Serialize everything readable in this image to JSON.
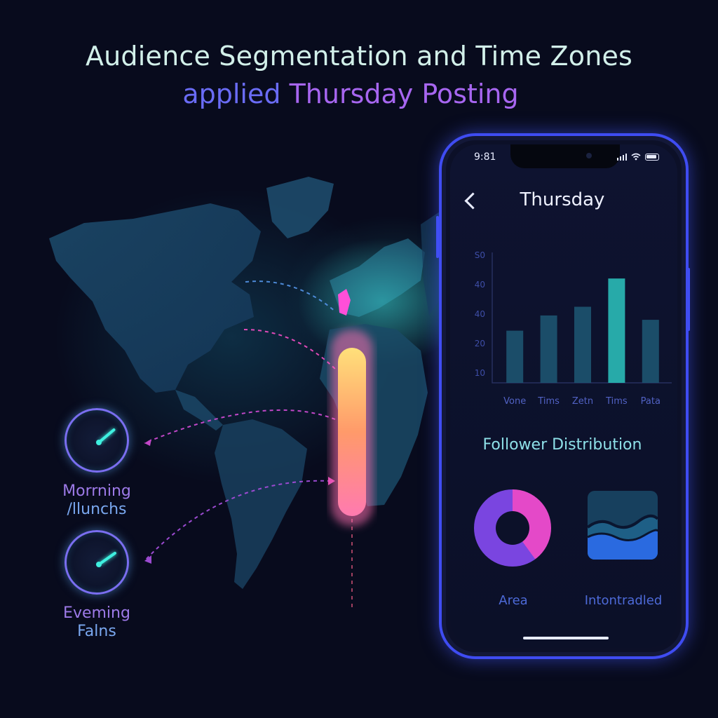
{
  "header": {
    "title_line1": "Audience Segmentation and Time Zones",
    "title_line2_word1": "applied",
    "title_line2_rest": "Thursday Posting"
  },
  "gauges": [
    {
      "label_line1": "Morrning",
      "label_line2": "/llunchs",
      "level": 0.35
    },
    {
      "label_line1": "Eveming",
      "label_line2": "Falns",
      "level": 0.45
    }
  ],
  "phone": {
    "status_time": "9:81",
    "screen_title": "Thursday",
    "section_title": "Follower Distribution",
    "donut_label": "Area",
    "wave_label": "Intontradled"
  },
  "chart_data": {
    "type": "bar",
    "categories": [
      "Vone",
      "Tims",
      "Zetn",
      "Tims",
      "Pata"
    ],
    "ytick_labels": [
      "10",
      "20",
      "40",
      "40",
      "S0"
    ],
    "values": [
      24,
      31,
      35,
      48,
      29
    ],
    "ylim": [
      0,
      60
    ],
    "xlabel": "",
    "ylabel": "",
    "grid": false,
    "bar_color": "#1d5470",
    "highlight_color": "#29b3b0"
  },
  "colors": {
    "background": "#080b1d",
    "accent_teal": "#3ff0e0",
    "accent_purple": "#8a6bf0",
    "phone_frame": "#3f4cf2",
    "donut_segment_a": "#e449c8",
    "donut_segment_b": "#7a45e0"
  }
}
